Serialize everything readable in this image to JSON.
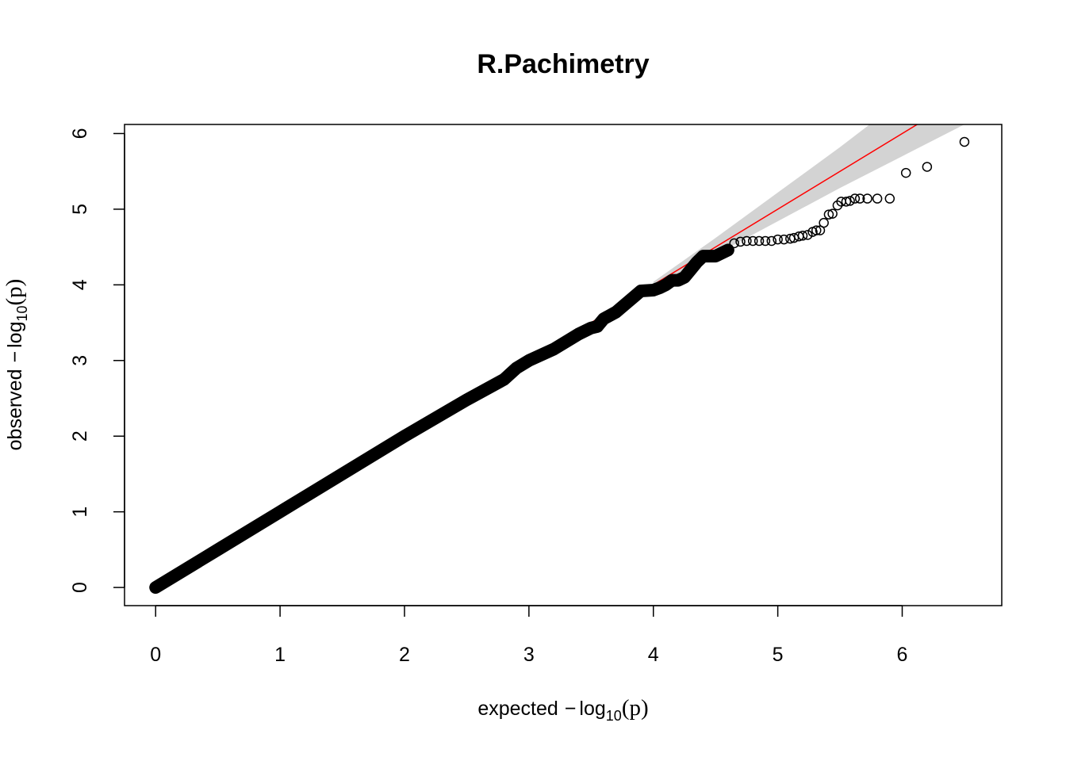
{
  "chart_data": {
    "type": "scatter",
    "title": "R.Pachimetry",
    "xlabel": {
      "pre": "expected",
      "minus": "−",
      "log": "log",
      "sub": "10",
      "open": "(",
      "p": "p",
      "close": ")"
    },
    "ylabel": {
      "pre": "observed",
      "minus": "−",
      "log": "log",
      "sub": "10",
      "open": "(",
      "p": "p",
      "close": ")"
    },
    "xlim": [
      -0.25,
      6.8
    ],
    "ylim": [
      -0.24,
      6.12
    ],
    "xticks": [
      0,
      1,
      2,
      3,
      4,
      5,
      6
    ],
    "yticks": [
      0,
      1,
      2,
      3,
      4,
      5,
      6
    ],
    "xtick_labels": [
      "0",
      "1",
      "2",
      "3",
      "4",
      "5",
      "6"
    ],
    "ytick_labels": [
      "0",
      "1",
      "2",
      "3",
      "4",
      "5",
      "6"
    ],
    "reference_line": {
      "color": "#ff0000",
      "slope": 1,
      "intercept": 0
    },
    "confidence_band": {
      "color": "#d3d3d3",
      "x": [
        4.0,
        4.5,
        5.0,
        5.5,
        6.0,
        6.5
      ],
      "lower": [
        3.96,
        4.4,
        4.84,
        5.28,
        5.7,
        6.12
      ],
      "upper": [
        4.04,
        4.62,
        5.22,
        5.82,
        6.45,
        7.05
      ]
    },
    "series": [
      {
        "name": "dense",
        "dense": true,
        "x": [
          0,
          0.5,
          1.0,
          1.5,
          2.0,
          2.5,
          2.8,
          2.9,
          3.0,
          3.2,
          3.4,
          3.5,
          3.55,
          3.6,
          3.7,
          3.8,
          3.9,
          4.0,
          4.05,
          4.1,
          4.15,
          4.2,
          4.25,
          4.3,
          4.35,
          4.4,
          4.5,
          4.6
        ],
        "y": [
          0,
          0.5,
          1.0,
          1.5,
          2.0,
          2.48,
          2.75,
          2.9,
          3.0,
          3.15,
          3.35,
          3.43,
          3.45,
          3.55,
          3.64,
          3.78,
          3.92,
          3.93,
          3.96,
          4.0,
          4.06,
          4.06,
          4.1,
          4.2,
          4.3,
          4.38,
          4.38,
          4.46
        ]
      },
      {
        "name": "tail",
        "dense": false,
        "x": [
          4.65,
          4.7,
          4.75,
          4.8,
          4.85,
          4.9,
          4.95,
          5.0,
          5.05,
          5.1,
          5.13,
          5.17,
          5.2,
          5.24,
          5.28,
          5.31,
          5.34,
          5.37,
          5.41,
          5.44,
          5.48,
          5.51,
          5.55,
          5.58,
          5.62,
          5.66,
          5.72,
          5.8,
          5.9,
          6.03,
          6.2,
          6.5
        ],
        "y": [
          4.55,
          4.57,
          4.58,
          4.58,
          4.58,
          4.58,
          4.58,
          4.6,
          4.6,
          4.61,
          4.62,
          4.64,
          4.65,
          4.66,
          4.7,
          4.72,
          4.72,
          4.82,
          4.93,
          4.94,
          5.05,
          5.1,
          5.1,
          5.11,
          5.14,
          5.14,
          5.14,
          5.14,
          5.14,
          5.48,
          5.56,
          5.89
        ]
      }
    ]
  }
}
